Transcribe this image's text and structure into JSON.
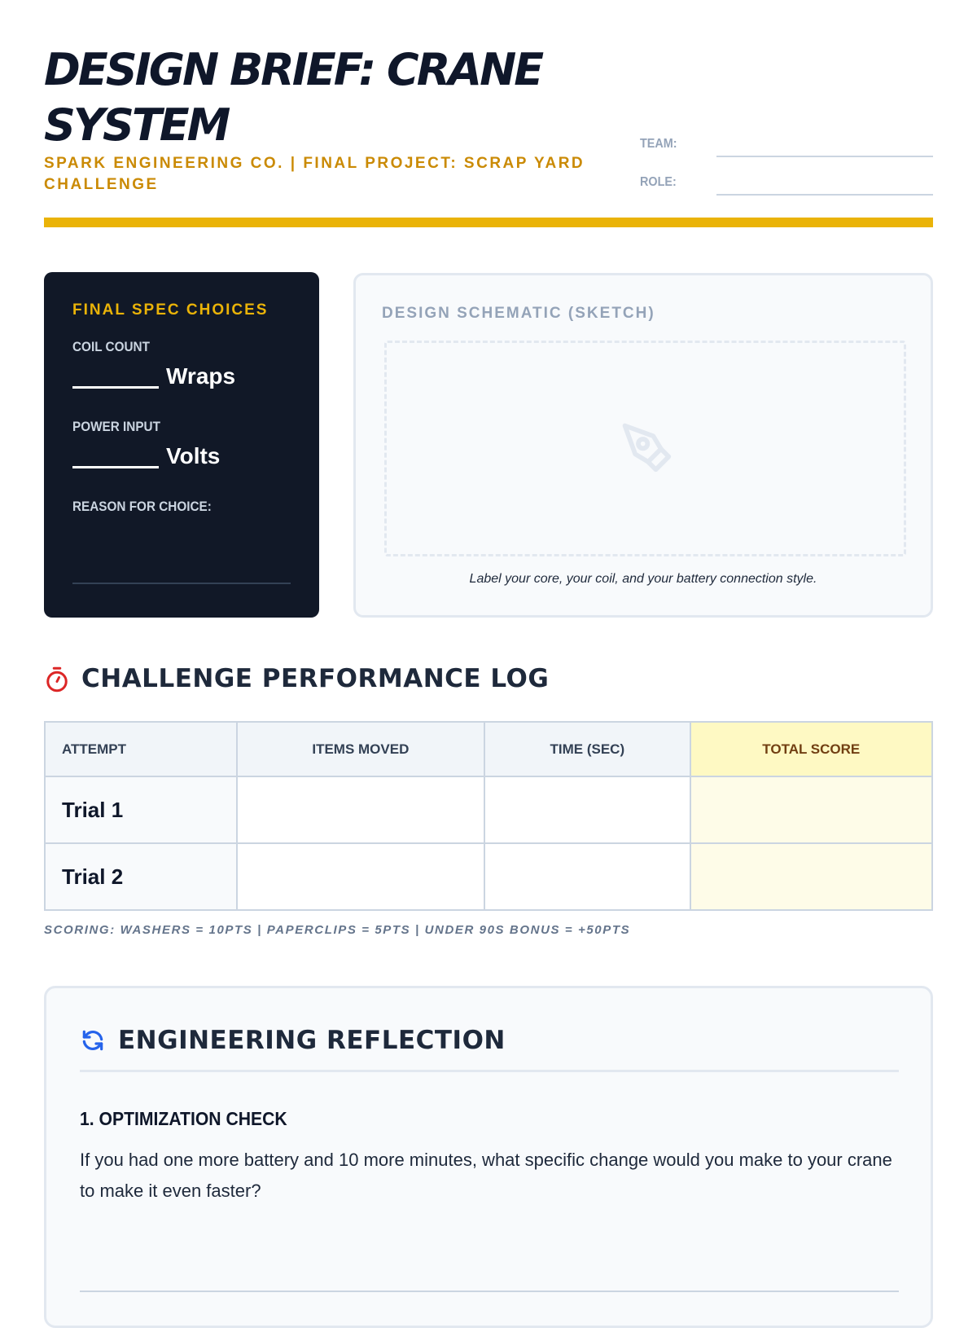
{
  "header": {
    "title": "DESIGN BRIEF: CRANE SYSTEM",
    "subtitle": "SPARK ENGINEERING CO. | FINAL PROJECT: SCRAP YARD CHALLENGE",
    "team_label": "TEAM:",
    "role_label": "ROLE:",
    "accent": "#eab308"
  },
  "specs": {
    "title": "FINAL SPEC CHOICES",
    "coil_label": "COIL COUNT",
    "coil_unit": "Wraps",
    "power_label": "POWER INPUT",
    "power_unit": "Volts",
    "reason_label": "REASON FOR CHOICE:"
  },
  "schematic": {
    "title": "DESIGN SCHEMATIC (SKETCH)",
    "icon": "pen-nib-icon",
    "caption": "Label your core, your coil, and your battery connection style."
  },
  "log": {
    "title": "CHALLENGE PERFORMANCE LOG",
    "icon": "stopwatch-icon",
    "columns": [
      "ATTEMPT",
      "ITEMS MOVED",
      "TIME (SEC)",
      "TOTAL SCORE"
    ],
    "rows": [
      [
        "Trial 1",
        "",
        "",
        ""
      ],
      [
        "Trial 2",
        "",
        "",
        ""
      ]
    ],
    "note": "SCORING: WASHERS = 10PTS | PAPERCLIPS = 5PTS | UNDER 90S BONUS = +50PTS"
  },
  "reflection": {
    "title": "ENGINEERING REFLECTION",
    "icon": "refresh-icon",
    "questions": [
      {
        "title": "1. OPTIMIZATION CHECK",
        "text": "If you had one more battery and 10 more minutes, what specific change would you make to your crane to make it even faster?"
      }
    ]
  }
}
